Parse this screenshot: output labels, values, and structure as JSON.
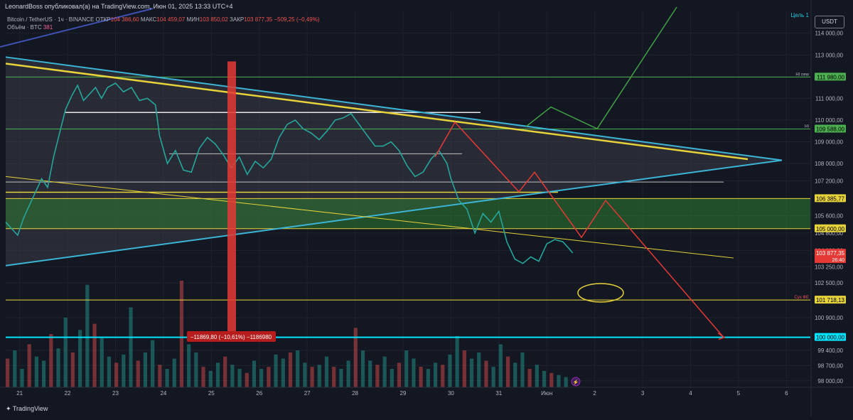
{
  "header": {
    "published": "LeonardBoss опубликовал(а) на TradingView.com, Июн 01, 2025 13:33 UTC+4"
  },
  "legend": {
    "symbol": "Bitcoin / TetherUS · 1ч · BINANCE",
    "open_label": "ОТКР",
    "open": "104 386,60",
    "high_label": "МАКС",
    "high": "104 459,07",
    "low_label": "МИН",
    "low": "103 850,02",
    "close_label": "ЗАКР",
    "close": "103 877,35",
    "change": "−509,25 (−0,49%)",
    "volume_label": "Объём · BTC",
    "volume": "381"
  },
  "currency_button": "USDT",
  "footer": {
    "brand": "TradingView"
  },
  "colors": {
    "bg": "#131722",
    "up": "#26a69a",
    "down": "#ef5350",
    "cyan": "#3bb4d6",
    "yellow": "#e6d23a",
    "green": "#4caf50",
    "red": "#e53935",
    "white": "#d1d4dc"
  },
  "chart_data": {
    "type": "line",
    "title": "Bitcoin / TetherUS · 1ч · BINANCE",
    "y_scale": "linear",
    "ylim": [
      97600,
      115200
    ],
    "xlim": [
      "2025-05-20T17:00",
      "2025-06-06T12:00"
    ],
    "y_ticks": [
      {
        "v": 114000,
        "t": "114 000,00"
      },
      {
        "v": 113000,
        "t": "113 000,00"
      },
      {
        "v": 112000,
        "t": "112 000,00"
      },
      {
        "v": 111000,
        "t": "111 000,00"
      },
      {
        "v": 110000,
        "t": "110 000,00"
      },
      {
        "v": 109000,
        "t": "109 000,00"
      },
      {
        "v": 108000,
        "t": "108 000,00"
      },
      {
        "v": 107200,
        "t": "107 200,00"
      },
      {
        "v": 106400,
        "t": "106 400,00"
      },
      {
        "v": 105600,
        "t": "105 600,00"
      },
      {
        "v": 104800,
        "t": "104 800,00"
      },
      {
        "v": 104000,
        "t": "104 000,00"
      },
      {
        "v": 103250,
        "t": "103 250,00"
      },
      {
        "v": 102500,
        "t": "102 500,00"
      },
      {
        "v": 101700,
        "t": "101 700,00"
      },
      {
        "v": 100900,
        "t": "100 900,00"
      },
      {
        "v": 100000,
        "t": "100 000,00"
      },
      {
        "v": 99400,
        "t": "99 400,00"
      },
      {
        "v": 98700,
        "t": "98 700,00"
      },
      {
        "v": 98000,
        "t": "98 000,00"
      }
    ],
    "x_ticks": [
      {
        "d": "2025-05-21T00:00",
        "t": "21"
      },
      {
        "d": "2025-05-22T00:00",
        "t": "22"
      },
      {
        "d": "2025-05-23T00:00",
        "t": "23"
      },
      {
        "d": "2025-05-24T00:00",
        "t": "24"
      },
      {
        "d": "2025-05-25T00:00",
        "t": "25"
      },
      {
        "d": "2025-05-26T00:00",
        "t": "26"
      },
      {
        "d": "2025-05-27T00:00",
        "t": "27"
      },
      {
        "d": "2025-05-28T00:00",
        "t": "28"
      },
      {
        "d": "2025-05-29T00:00",
        "t": "29"
      },
      {
        "d": "2025-05-30T00:00",
        "t": "30"
      },
      {
        "d": "2025-05-31T00:00",
        "t": "31"
      },
      {
        "d": "2025-06-01T00:00",
        "t": "Июн"
      },
      {
        "d": "2025-06-02T00:00",
        "t": "2"
      },
      {
        "d": "2025-06-03T00:00",
        "t": "3"
      },
      {
        "d": "2025-06-04T00:00",
        "t": "4"
      },
      {
        "d": "2025-06-05T00:00",
        "t": "5"
      },
      {
        "d": "2025-06-06T00:00",
        "t": "6"
      }
    ],
    "price_series": {
      "name": "BTCUSDT",
      "points": [
        [
          "2025-05-20T17:00",
          105300
        ],
        [
          "2025-05-20T20:00",
          105000
        ],
        [
          "2025-05-20T23:00",
          104700
        ],
        [
          "2025-05-21T02:00",
          105500
        ],
        [
          "2025-05-21T05:00",
          106100
        ],
        [
          "2025-05-21T08:00",
          106700
        ],
        [
          "2025-05-21T11:00",
          107300
        ],
        [
          "2025-05-21T14:00",
          106900
        ],
        [
          "2025-05-21T17:00",
          108300
        ],
        [
          "2025-05-21T20:00",
          109400
        ],
        [
          "2025-05-21T23:00",
          110500
        ],
        [
          "2025-05-22T02:00",
          111100
        ],
        [
          "2025-05-22T05:00",
          111600
        ],
        [
          "2025-05-22T08:00",
          110900
        ],
        [
          "2025-05-22T11:00",
          111200
        ],
        [
          "2025-05-22T14:00",
          111500
        ],
        [
          "2025-05-22T17:00",
          111000
        ],
        [
          "2025-05-22T20:00",
          111500
        ],
        [
          "2025-05-23T00:00",
          111700
        ],
        [
          "2025-05-23T04:00",
          111300
        ],
        [
          "2025-05-23T08:00",
          111500
        ],
        [
          "2025-05-23T12:00",
          110900
        ],
        [
          "2025-05-23T16:00",
          111000
        ],
        [
          "2025-05-23T20:00",
          110700
        ],
        [
          "2025-05-23T22:00",
          109300
        ],
        [
          "2025-05-24T02:00",
          108000
        ],
        [
          "2025-05-24T06:00",
          108600
        ],
        [
          "2025-05-24T10:00",
          107700
        ],
        [
          "2025-05-24T14:00",
          107600
        ],
        [
          "2025-05-24T18:00",
          108700
        ],
        [
          "2025-05-24T22:00",
          109200
        ],
        [
          "2025-05-25T02:00",
          108900
        ],
        [
          "2025-05-25T06:00",
          108400
        ],
        [
          "2025-05-25T10:00",
          107800
        ],
        [
          "2025-05-25T14:00",
          108300
        ],
        [
          "2025-05-25T18:00",
          107500
        ],
        [
          "2025-05-25T22:00",
          108100
        ],
        [
          "2025-05-26T02:00",
          107800
        ],
        [
          "2025-05-26T06:00",
          108200
        ],
        [
          "2025-05-26T10:00",
          109200
        ],
        [
          "2025-05-26T14:00",
          109800
        ],
        [
          "2025-05-26T18:00",
          110000
        ],
        [
          "2025-05-26T22:00",
          109600
        ],
        [
          "2025-05-27T02:00",
          109400
        ],
        [
          "2025-05-27T06:00",
          109100
        ],
        [
          "2025-05-27T10:00",
          109500
        ],
        [
          "2025-05-27T14:00",
          110000
        ],
        [
          "2025-05-27T18:00",
          110100
        ],
        [
          "2025-05-27T22:00",
          110300
        ],
        [
          "2025-05-28T02:00",
          109800
        ],
        [
          "2025-05-28T06:00",
          109300
        ],
        [
          "2025-05-28T10:00",
          108800
        ],
        [
          "2025-05-28T14:00",
          108800
        ],
        [
          "2025-05-28T18:00",
          109000
        ],
        [
          "2025-05-28T22:00",
          108600
        ],
        [
          "2025-05-29T02:00",
          107900
        ],
        [
          "2025-05-29T06:00",
          107400
        ],
        [
          "2025-05-29T10:00",
          107600
        ],
        [
          "2025-05-29T14:00",
          108200
        ],
        [
          "2025-05-29T18:00",
          108600
        ],
        [
          "2025-05-29T22:00",
          108000
        ],
        [
          "2025-05-30T00:00",
          107300
        ],
        [
          "2025-05-30T04:00",
          106300
        ],
        [
          "2025-05-30T08:00",
          105900
        ],
        [
          "2025-05-30T12:00",
          104800
        ],
        [
          "2025-05-30T16:00",
          105700
        ],
        [
          "2025-05-30T20:00",
          105300
        ],
        [
          "2025-05-31T00:00",
          105800
        ],
        [
          "2025-05-31T04:00",
          104400
        ],
        [
          "2025-05-31T08:00",
          103600
        ],
        [
          "2025-05-31T12:00",
          103400
        ],
        [
          "2025-05-31T16:00",
          103700
        ],
        [
          "2025-05-31T20:00",
          103500
        ],
        [
          "2025-06-01T00:00",
          104300
        ],
        [
          "2025-06-01T04:00",
          104500
        ],
        [
          "2025-06-01T08:00",
          104400
        ],
        [
          "2025-06-01T11:00",
          104100
        ],
        [
          "2025-06-01T13:00",
          103877
        ]
      ]
    },
    "volume_series": {
      "name": "Объём · BTC",
      "max": 5200,
      "values": [
        1400,
        1800,
        900,
        2100,
        1500,
        1300,
        2600,
        1900,
        3400,
        1700,
        2800,
        5000,
        3100,
        2400,
        1500,
        1200,
        1600,
        3900,
        1300,
        1700,
        2300,
        1100,
        900,
        1400,
        5200,
        2100,
        1700,
        1000,
        800,
        1200,
        1500,
        1100,
        900,
        700,
        1300,
        900,
        1000,
        1600,
        1400,
        1700,
        1800,
        1200,
        1000,
        1100,
        1500,
        1000,
        900,
        1300,
        2900,
        1800,
        1300,
        1100,
        1500,
        900,
        1200,
        1800,
        1400,
        1000,
        900,
        1200,
        1100,
        1600,
        2500,
        1800,
        1400,
        1700,
        1300,
        1000,
        2100,
        1500,
        1200,
        1700,
        900,
        1100,
        800,
        700,
        600,
        500
      ]
    },
    "annotations": {
      "resistance_level_label": "Цель 1",
      "price_labels": [
        {
          "value": 111980,
          "text": "111 980,00",
          "label": "HI new",
          "color": "green"
        },
        {
          "value": 109588,
          "text": "109 588,00",
          "label": "HI",
          "color": "green"
        },
        {
          "value": 106385.77,
          "text": "106 385,77",
          "label": "",
          "color": "yellow"
        },
        {
          "value": 105000,
          "text": "105 000,00",
          "label": "",
          "color": "yellow"
        },
        {
          "value": 103877.35,
          "text": "103 877,35",
          "label": "",
          "color": "red",
          "sub": "26:40"
        },
        {
          "value": 101718.13,
          "text": "101 718,13",
          "label": "Сух ФЕ",
          "color": "yellow"
        },
        {
          "value": 100000,
          "text": "100 000,00",
          "label": "",
          "color": "cyan"
        }
      ],
      "measure_label": "−11869,80 (−10,61%) −1186980"
    }
  }
}
